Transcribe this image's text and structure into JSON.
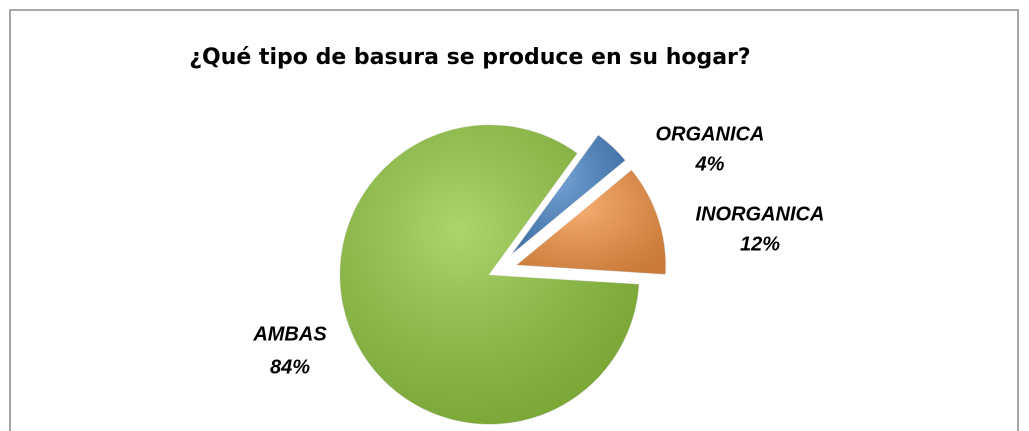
{
  "chart_data": {
    "type": "pie",
    "title": "¿Qué tipo de basura se produce en su hogar?",
    "categories": [
      "ORGANICA",
      "INORGANICA",
      "AMBAS"
    ],
    "values": [
      4,
      12,
      84
    ],
    "value_labels": [
      "4%",
      "12%",
      "84%"
    ],
    "colors": [
      "#4a86c8",
      "#f79646",
      "#92c83e"
    ]
  }
}
